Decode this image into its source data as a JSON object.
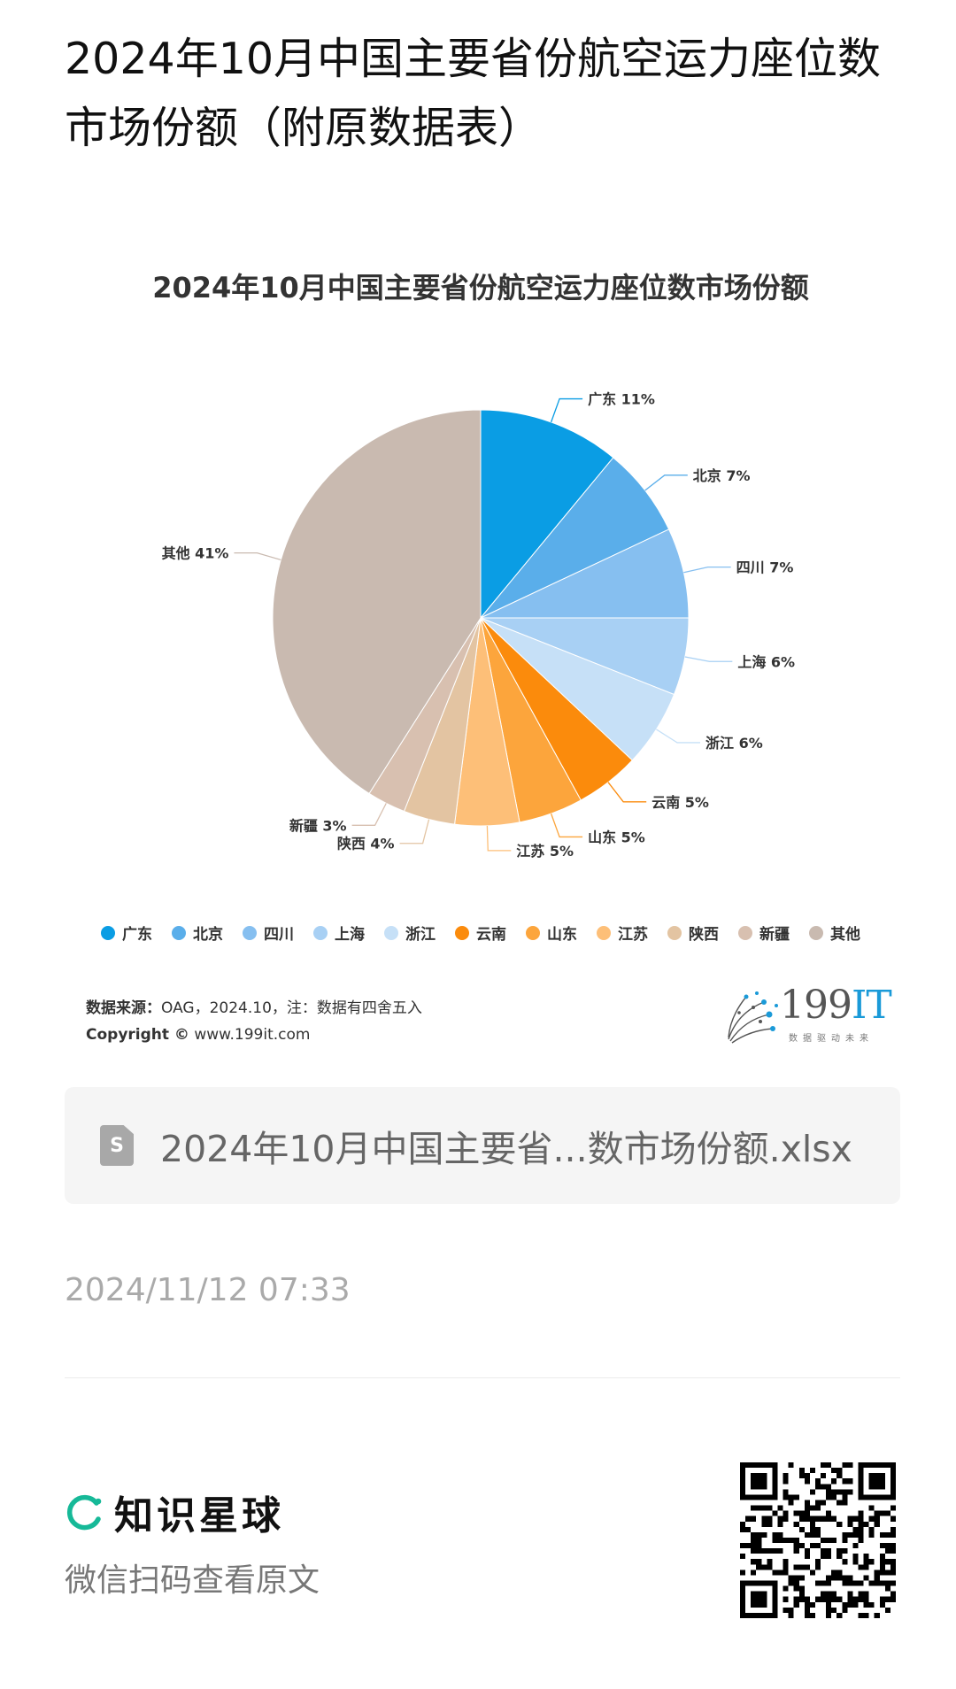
{
  "page": {
    "title": "2024年10月中国主要省份航空运力座位数市场份额（附原数据表）"
  },
  "chart_data": {
    "type": "pie",
    "title": "2024年10月中国主要省份航空运力座位数市场份额",
    "categories": [
      "广东",
      "北京",
      "四川",
      "上海",
      "浙江",
      "云南",
      "山东",
      "江苏",
      "陕西",
      "新疆",
      "其他"
    ],
    "values": [
      11,
      7,
      7,
      6,
      6,
      5,
      5,
      5,
      4,
      3,
      41
    ],
    "labels": [
      "广东 11%",
      "北京 7%",
      "四川 7%",
      "上海 6%",
      "浙江 6%",
      "云南 5%",
      "山东 5%",
      "江苏 5%",
      "陕西 4%",
      "新疆 3%",
      "其他 41%"
    ],
    "colors": [
      "#0a9de4",
      "#5aaeea",
      "#86bff0",
      "#a8d0f4",
      "#c6e0f7",
      "#fb8b0c",
      "#fca53c",
      "#fdbf78",
      "#e3c4a2",
      "#d8c0b0",
      "#c9bab0"
    ],
    "legend_position": "bottom"
  },
  "source": {
    "label": "数据来源：",
    "text": "OAG，2024.10，注：数据有四舍五入",
    "copyright_label": "Copyright ©",
    "copyright_text": "www.199it.com"
  },
  "brand_logo": {
    "text_num": "199",
    "text_it": "IT",
    "slogan": "数据驱动未来"
  },
  "file": {
    "icon": "spreadsheet-file-icon",
    "icon_letter": "S",
    "name": "2024年10月中国主要省...数市场份额.xlsx"
  },
  "timestamp": "2024/11/12 07:33",
  "footer": {
    "brand_icon": "zsxq-logo-icon",
    "brand_name": "知识星球",
    "scan_hint": "微信扫码查看原文",
    "qr_icon": "qr-code-icon"
  }
}
